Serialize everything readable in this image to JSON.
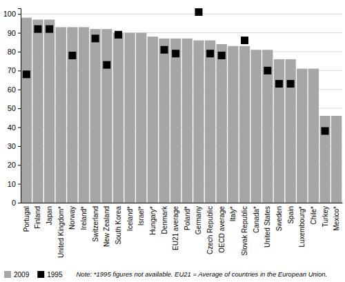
{
  "chart_data": {
    "type": "bar",
    "categories": [
      "Portugal",
      "Finland",
      "Japan",
      "United Kingdom*",
      "Norway",
      "Ireland*",
      "Switzerland",
      "New Zealand",
      "South Korea",
      "Iceland*",
      "Israel*",
      "Hungary*",
      "Denmark",
      "EU21 average",
      "Poland*",
      "Germany",
      "Czech Republic",
      "OECD average",
      "Italy*",
      "Slovak Republic",
      "Canada*",
      "United States",
      "Sweden",
      "Spain",
      "Luxembourg*",
      "Chile*",
      "Turkey",
      "Mexico*"
    ],
    "series": [
      {
        "name": "2009",
        "type": "bar",
        "color": "#a6a6a6",
        "values": [
          98,
          97,
          97,
          93,
          93,
          93,
          92,
          92,
          90,
          90,
          90,
          88,
          87,
          87,
          87,
          86,
          86,
          84,
          83,
          83,
          81,
          81,
          76,
          76,
          71,
          71,
          46,
          46
        ]
      },
      {
        "name": "1995",
        "type": "scatter",
        "marker": "square",
        "color": "#000000",
        "values": [
          68,
          92,
          92,
          null,
          78,
          null,
          87,
          73,
          89,
          null,
          null,
          null,
          81,
          79,
          null,
          101,
          79,
          78,
          null,
          86,
          null,
          70,
          63,
          63,
          null,
          null,
          38,
          null
        ]
      }
    ],
    "ylim": [
      0,
      103
    ],
    "yticks": [
      0,
      10,
      20,
      30,
      40,
      50,
      60,
      70,
      80,
      90,
      100
    ],
    "grid": true,
    "legend": "bottom",
    "note": "Note: *1995 figures not available. EU21 = Average of countries in the European Union."
  }
}
